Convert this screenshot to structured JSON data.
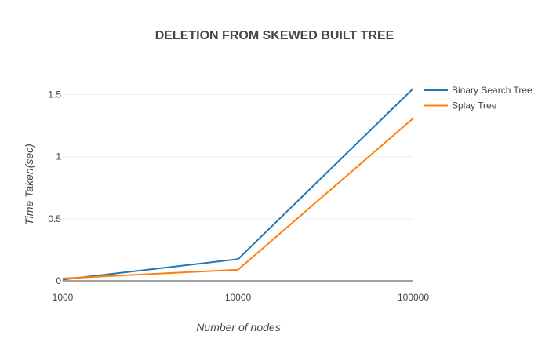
{
  "chart_data": {
    "type": "line",
    "title": "DELETION FROM SKEWED BUILT TREE",
    "xlabel": "Number of nodes",
    "ylabel": "Time Taken(sec)",
    "x_scale": "log",
    "x": [
      1000,
      10000,
      100000
    ],
    "x_tick_labels": [
      "1000",
      "10000",
      "100000"
    ],
    "y_ticks": [
      0,
      0.5,
      1,
      1.5
    ],
    "y_tick_labels": [
      "0",
      "0.5",
      "1",
      "1.5"
    ],
    "ylim": [
      0,
      1.63
    ],
    "xlim": [
      1000,
      100000
    ],
    "grid": true,
    "legend_position": "top-right",
    "series": [
      {
        "name": "Binary Search Tree",
        "values": [
          0.01,
          0.175,
          1.55
        ],
        "color": "#1f77b4"
      },
      {
        "name": "Splay Tree",
        "values": [
          0.02,
          0.09,
          1.31
        ],
        "color": "#ff7f0e"
      }
    ]
  }
}
